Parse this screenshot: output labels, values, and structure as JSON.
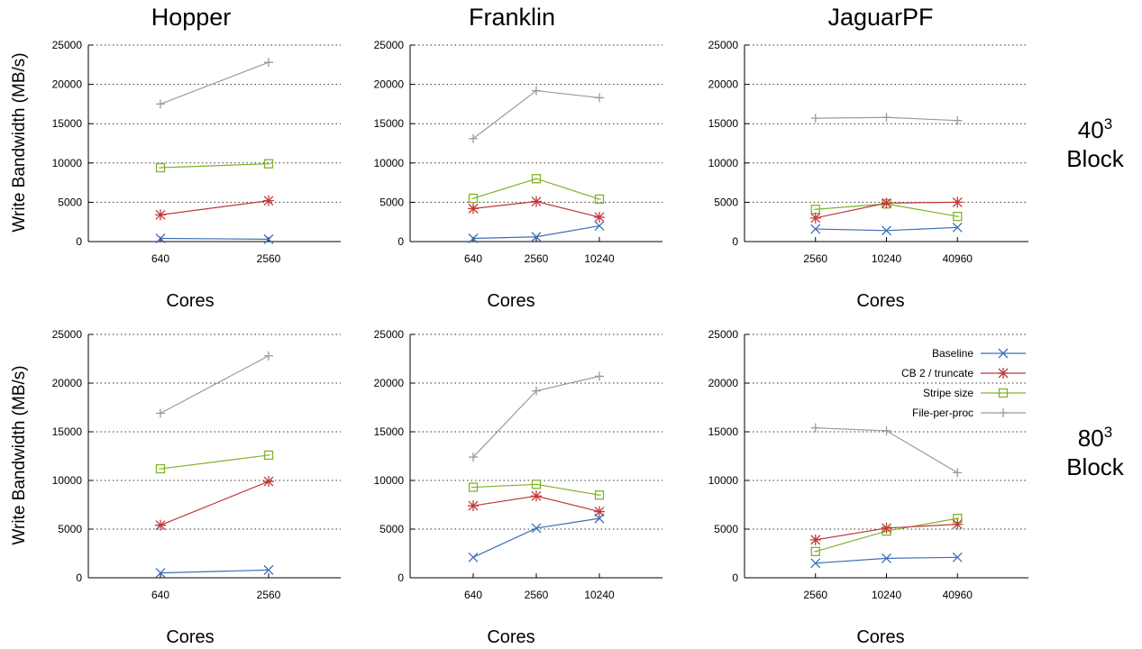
{
  "column_titles": [
    "Hopper",
    "Franklin",
    "JaguarPF"
  ],
  "row_labels": [
    {
      "base": "40",
      "exp": "3",
      "word": "Block"
    },
    {
      "base": "80",
      "exp": "3",
      "word": "Block"
    }
  ],
  "ylabel": "Write Bandwidth (MB/s)",
  "xlabel": "Cores",
  "colors": {
    "Baseline": "#3d6fb5",
    "CB 2 / truncate": "#c0393b",
    "Stripe size": "#7fb32a",
    "File-per-proc": "#9a9a9a"
  },
  "chart_data": [
    {
      "type": "line",
      "system": "Hopper",
      "block": "40^3",
      "categories": [
        "640",
        "2560"
      ],
      "ylim": [
        0,
        25000
      ],
      "grid": true,
      "series": [
        {
          "name": "Baseline",
          "values": [
            400,
            300
          ]
        },
        {
          "name": "CB 2 / truncate",
          "values": [
            3400,
            5200
          ]
        },
        {
          "name": "Stripe size",
          "values": [
            9400,
            9900
          ]
        },
        {
          "name": "File-per-proc",
          "values": [
            17500,
            22800
          ]
        }
      ]
    },
    {
      "type": "line",
      "system": "Franklin",
      "block": "40^3",
      "categories": [
        "640",
        "2560",
        "10240"
      ],
      "ylim": [
        0,
        25000
      ],
      "grid": true,
      "series": [
        {
          "name": "Baseline",
          "values": [
            400,
            600,
            2000
          ]
        },
        {
          "name": "CB 2 / truncate",
          "values": [
            4200,
            5100,
            3100
          ]
        },
        {
          "name": "Stripe size",
          "values": [
            5500,
            8000,
            5400
          ]
        },
        {
          "name": "File-per-proc",
          "values": [
            13100,
            19200,
            18300
          ]
        }
      ]
    },
    {
      "type": "line",
      "system": "JaguarPF",
      "block": "40^3",
      "categories": [
        "2560",
        "10240",
        "40960"
      ],
      "ylim": [
        0,
        25000
      ],
      "grid": true,
      "series": [
        {
          "name": "Baseline",
          "values": [
            1600,
            1400,
            1800
          ]
        },
        {
          "name": "CB 2 / truncate",
          "values": [
            3000,
            4900,
            5000
          ]
        },
        {
          "name": "Stripe size",
          "values": [
            4100,
            4800,
            3200
          ]
        },
        {
          "name": "File-per-proc",
          "values": [
            15700,
            15800,
            15400
          ]
        }
      ]
    },
    {
      "type": "line",
      "system": "Hopper",
      "block": "80^3",
      "categories": [
        "640",
        "2560"
      ],
      "ylim": [
        0,
        25000
      ],
      "grid": true,
      "series": [
        {
          "name": "Baseline",
          "values": [
            500,
            800
          ]
        },
        {
          "name": "CB 2 / truncate",
          "values": [
            5400,
            9900
          ]
        },
        {
          "name": "Stripe size",
          "values": [
            11200,
            12600
          ]
        },
        {
          "name": "File-per-proc",
          "values": [
            16900,
            22800
          ]
        }
      ]
    },
    {
      "type": "line",
      "system": "Franklin",
      "block": "80^3",
      "categories": [
        "640",
        "2560",
        "10240"
      ],
      "ylim": [
        0,
        25000
      ],
      "grid": true,
      "series": [
        {
          "name": "Baseline",
          "values": [
            2100,
            5100,
            6100
          ]
        },
        {
          "name": "CB 2 / truncate",
          "values": [
            7400,
            8400,
            6800
          ]
        },
        {
          "name": "Stripe size",
          "values": [
            9300,
            9600,
            8500
          ]
        },
        {
          "name": "File-per-proc",
          "values": [
            12400,
            19200,
            20700
          ]
        }
      ]
    },
    {
      "type": "line",
      "system": "JaguarPF",
      "block": "80^3",
      "categories": [
        "2560",
        "10240",
        "40960"
      ],
      "ylim": [
        0,
        25000
      ],
      "grid": true,
      "legend": "top-right",
      "series": [
        {
          "name": "Baseline",
          "values": [
            1500,
            2000,
            2100
          ]
        },
        {
          "name": "CB 2 / truncate",
          "values": [
            3900,
            5100,
            5500
          ]
        },
        {
          "name": "Stripe size",
          "values": [
            2700,
            4800,
            6100
          ]
        },
        {
          "name": "File-per-proc",
          "values": [
            15400,
            15100,
            10800
          ]
        }
      ]
    }
  ],
  "legend_entries": [
    "Baseline",
    "CB 2 / truncate",
    "Stripe size",
    "File-per-proc"
  ],
  "yticks": [
    "0",
    "5000",
    "10000",
    "15000",
    "20000",
    "25000"
  ]
}
